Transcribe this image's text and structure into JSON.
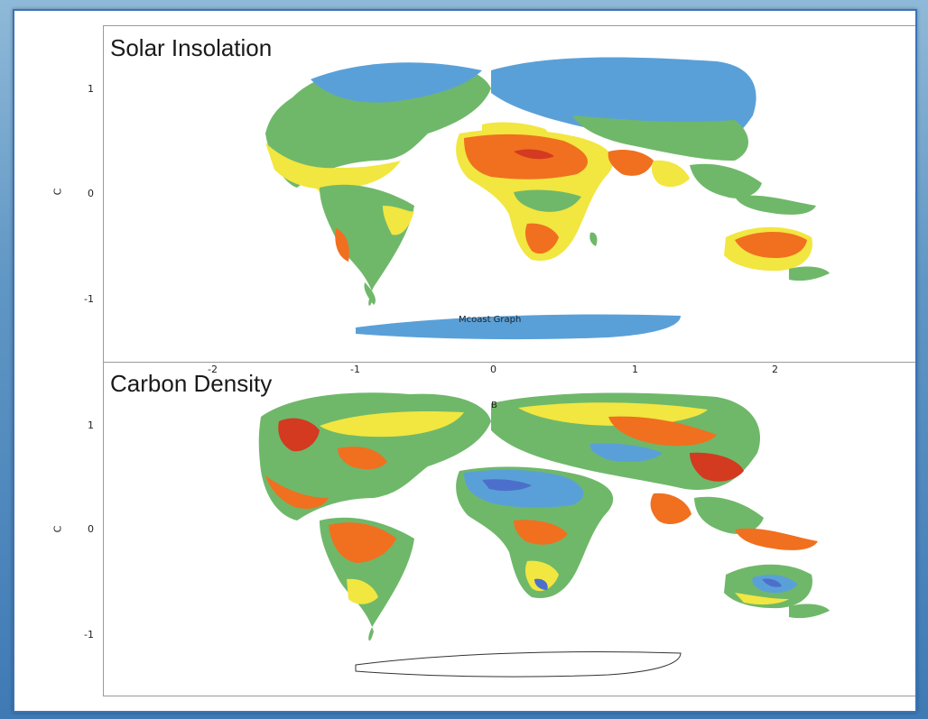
{
  "panels": [
    {
      "title": "Solar Insolation",
      "ylabel": "C",
      "yticks": [
        "1",
        "0",
        "-1"
      ],
      "annotation": "Mcoast Graph"
    },
    {
      "title": "Carbon Density",
      "ylabel": "C",
      "yticks": [
        "1",
        "0",
        "-1"
      ],
      "annotation": "B"
    }
  ],
  "xticks": [
    "-2",
    "-1",
    "0",
    "1",
    "2"
  ],
  "colors": {
    "high": "#f07020",
    "mid_high": "#f2e640",
    "mid": "#6fb86a",
    "low": "#5aa0d8",
    "lowest": "#4d6fcc",
    "deep_red": "#d33a20",
    "frame": "#3a73b8"
  }
}
